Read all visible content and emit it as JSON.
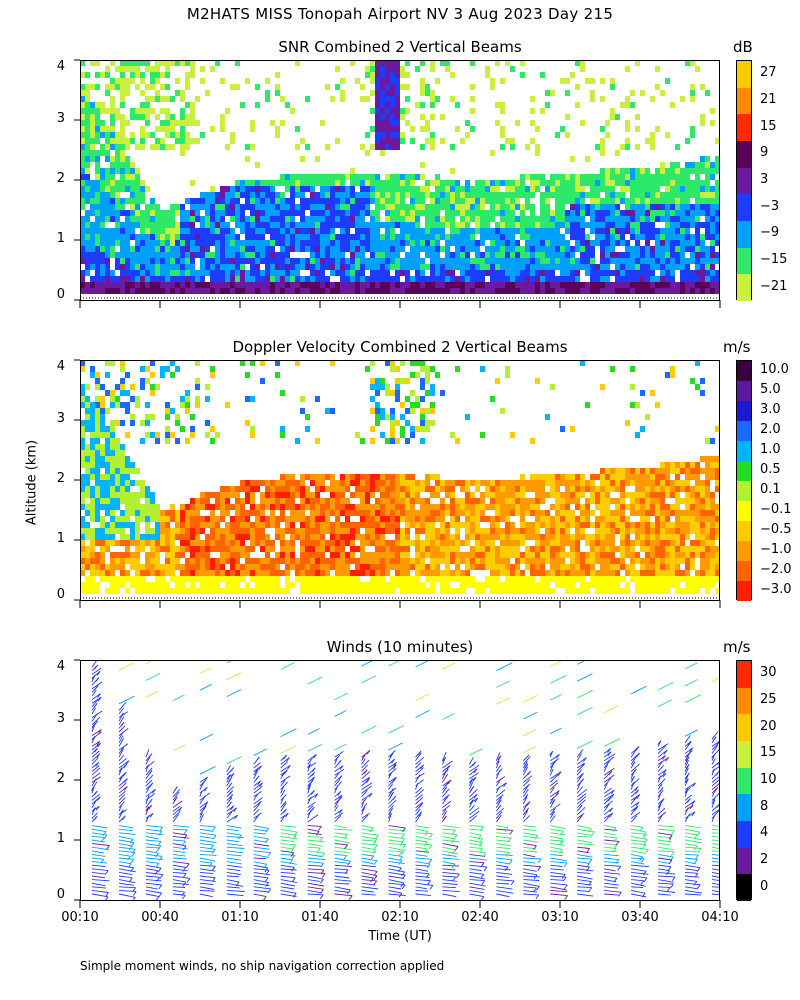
{
  "title": "M2HATS MISS Tonopah Airport NV   3 Aug 2023 Day 215",
  "y_axis_label": "Altitude (km)",
  "x_axis_label": "Time (UT)",
  "footnote": "Simple moment winds, no ship navigation correction applied",
  "x_ticks": [
    "00:10",
    "00:40",
    "01:10",
    "01:40",
    "02:10",
    "02:40",
    "03:10",
    "03:40",
    "04:10"
  ],
  "y_ticks": [
    "0",
    "1",
    "2",
    "3",
    "4"
  ],
  "panels": [
    {
      "title": "SNR Combined 2 Vertical Beams",
      "unit": "dB",
      "colorbar": {
        "labels": [
          "27",
          "21",
          "15",
          "9",
          "3",
          "−3",
          "−9",
          "−15",
          "−21"
        ],
        "colors": [
          "#ffc800",
          "#ff8c00",
          "#ff2a00",
          "#5a005a",
          "#6a1a9e",
          "#1e3cff",
          "#00a0ff",
          "#2ee86a",
          "#c8f03c"
        ]
      }
    },
    {
      "title": "Doppler Velocity Combined 2 Vertical Beams",
      "unit": "m/s",
      "colorbar": {
        "labels": [
          "10.0",
          "5.0",
          "3.0",
          "2.0",
          "1.0",
          "0.5",
          "0.1",
          "−0.1",
          "−0.5",
          "−1.0",
          "−2.0",
          "−3.0"
        ],
        "colors": [
          "#3a0040",
          "#5a1aa0",
          "#1a1ad0",
          "#1a6aff",
          "#00b4ff",
          "#22dd22",
          "#b4f032",
          "#ffff00",
          "#ffcc00",
          "#ff9a00",
          "#ff6400",
          "#ff1e00"
        ]
      }
    },
    {
      "title": "Winds (10 minutes)",
      "unit": "m/s",
      "colorbar": {
        "labels": [
          "30",
          "25",
          "20",
          "15",
          "10",
          "8",
          "4",
          "2",
          "0"
        ],
        "colors": [
          "#ff2a00",
          "#ff8c00",
          "#ffc800",
          "#c8f03c",
          "#2ee86a",
          "#00a0ff",
          "#1e3cff",
          "#6a1a9e",
          "#000000"
        ]
      }
    }
  ],
  "chart_data": [
    {
      "type": "heatmap",
      "title": "SNR Combined 2 Vertical Beams",
      "xlabel": "Time (UT)",
      "ylabel": "Altitude (km)",
      "x_range": [
        "00:10",
        "04:10"
      ],
      "ylim": [
        0,
        4
      ],
      "colorbar_unit": "dB",
      "colorbar_range": [
        -21,
        27
      ],
      "echo_top_km": [
        {
          "t": "00:10",
          "top": 3.6
        },
        {
          "t": "00:40",
          "top": 1.5
        },
        {
          "t": "01:10",
          "top": 2.0
        },
        {
          "t": "01:40",
          "top": 2.1
        },
        {
          "t": "02:10",
          "top": 2.1
        },
        {
          "t": "02:40",
          "top": 2.0
        },
        {
          "t": "03:10",
          "top": 2.1
        },
        {
          "t": "03:40",
          "top": 2.2
        },
        {
          "t": "04:10",
          "top": 2.4
        }
      ]
    },
    {
      "type": "heatmap",
      "title": "Doppler Velocity Combined 2 Vertical Beams",
      "xlabel": "Time (UT)",
      "ylabel": "Altitude (km)",
      "x_range": [
        "00:10",
        "04:10"
      ],
      "ylim": [
        0,
        4
      ],
      "colorbar_unit": "m/s",
      "colorbar_range": [
        -3.0,
        10.0
      ]
    },
    {
      "type": "scatter",
      "title": "Winds (10 minutes)",
      "xlabel": "Time (UT)",
      "ylabel": "Altitude (km)",
      "x_range": [
        "00:10",
        "04:10"
      ],
      "ylim": [
        0,
        4
      ],
      "colorbar_unit": "m/s",
      "colorbar_range": [
        0,
        34
      ]
    }
  ]
}
